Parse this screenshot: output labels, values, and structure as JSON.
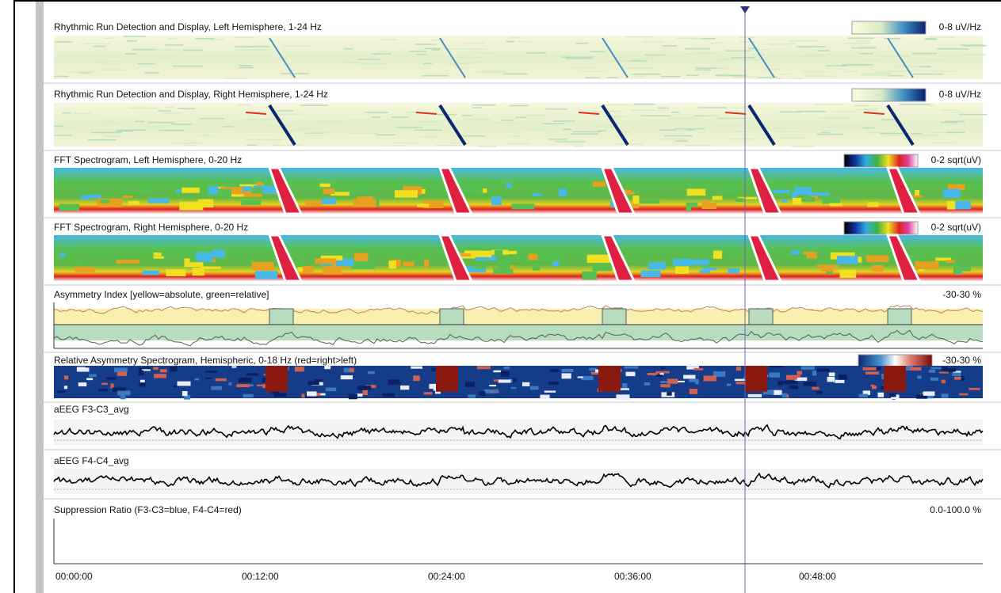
{
  "panels": [
    {
      "title": "Rhythmic Run Detection and Display, Left Hemisphere, 1-24 Hz",
      "scale": "0-8 uV/Hz"
    },
    {
      "title": "Rhythmic Run Detection and Display, Right Hemisphere, 1-24 Hz",
      "scale": "0-8 uV/Hz"
    },
    {
      "title": "FFT Spectrogram, Left Hemisphere, 0-20 Hz",
      "scale": "0-2 sqrt(uV)"
    },
    {
      "title": "FFT Spectrogram, Right Hemisphere, 0-20 Hz",
      "scale": "0-2 sqrt(uV)"
    },
    {
      "title": "Asymmetry Index [yellow=absolute, green=relative]",
      "scale": "-30-30 %"
    },
    {
      "title": "Relative Asymmetry Spectrogram, Hemispheric, 0-18 Hz (red=right>left)",
      "scale": "-30-30 %"
    },
    {
      "title": "aEEG F3-C3_avg"
    },
    {
      "title": "aEEG F4-C4_avg"
    },
    {
      "title": "Suppression Ratio (F3-C3=blue, F4-C4=red)",
      "scale": "0.0-100.0 %"
    }
  ],
  "time_axis": {
    "labels": [
      "00:00:00",
      "00:12:00",
      "00:24:00",
      "00:36:00",
      "00:48:00"
    ]
  }
}
